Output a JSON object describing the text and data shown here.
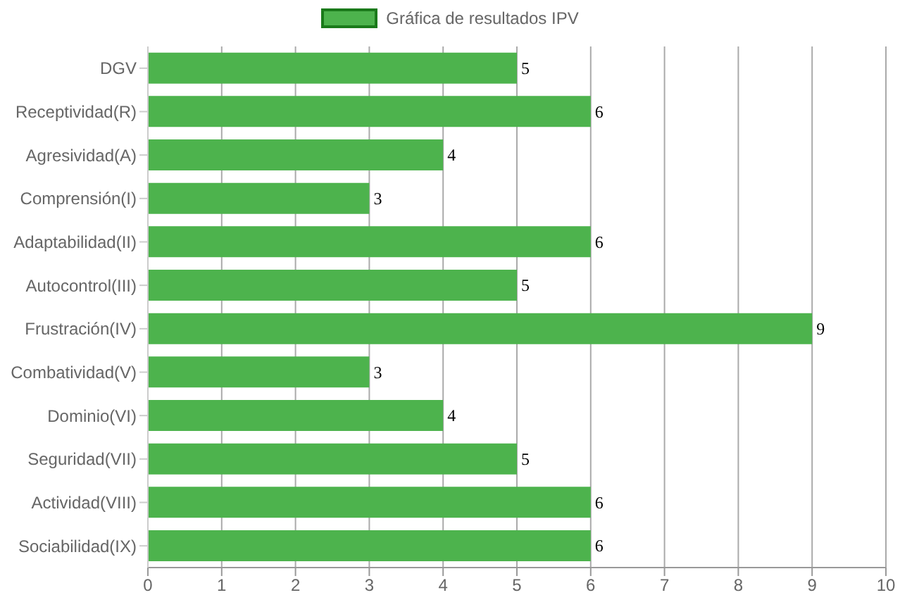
{
  "chart_data": {
    "type": "bar",
    "orientation": "horizontal",
    "categories": [
      "DGV",
      "Receptividad(R)",
      "Agresividad(A)",
      "Comprensión(I)",
      "Adaptabilidad(II)",
      "Autocontrol(III)",
      "Frustración(IV)",
      "Combatividad(V)",
      "Dominio(VI)",
      "Seguridad(VII)",
      "Actividad(VIII)",
      "Sociabilidad(IX)"
    ],
    "series": [
      {
        "name": "Gráfica de resultados IPV",
        "color": "#4db34d",
        "values": [
          5,
          6,
          4,
          3,
          6,
          5,
          9,
          3,
          4,
          5,
          6,
          6
        ]
      }
    ],
    "xlim": [
      0,
      10
    ],
    "xticks": [
      0,
      1,
      2,
      3,
      4,
      5,
      6,
      7,
      8,
      9,
      10
    ],
    "grid": true,
    "legend": "top",
    "data_labels": true
  }
}
